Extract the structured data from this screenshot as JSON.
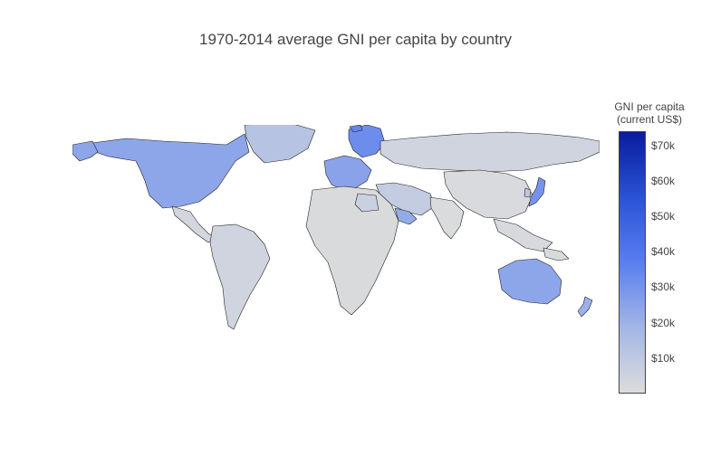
{
  "title": "1970-2014 average GNI per capita by country",
  "colorbar": {
    "title_line1": "GNI per capita",
    "title_line2": "(current US$)",
    "min": 0,
    "max": 74000,
    "ticks": [
      {
        "label": "$10k",
        "value": 10000
      },
      {
        "label": "$20k",
        "value": 20000
      },
      {
        "label": "$30k",
        "value": 30000
      },
      {
        "label": "$40k",
        "value": 40000
      },
      {
        "label": "$50k",
        "value": 50000
      },
      {
        "label": "$60k",
        "value": 60000
      },
      {
        "label": "$70k",
        "value": 70000
      }
    ],
    "colorscale": [
      "#dcdcdc",
      "#a2b6e6",
      "#5a7ef0",
      "#2a52d4",
      "#0a1c9e"
    ]
  },
  "map": {
    "projection": "equirectangular",
    "border_color": "#222222",
    "no_data_color": "#d9d9d9",
    "regions": [
      {
        "name": "North America",
        "value": 24000
      },
      {
        "name": "Alaska",
        "value": 24000
      },
      {
        "name": "Greenland",
        "value": 12000
      },
      {
        "name": "Central America",
        "value": 3000
      },
      {
        "name": "South America",
        "value": 4000
      },
      {
        "name": "Western Europe",
        "value": 25000
      },
      {
        "name": "Scandinavia",
        "value": 32000
      },
      {
        "name": "Iceland",
        "value": 35000
      },
      {
        "name": "Russia",
        "value": 4000
      },
      {
        "name": "Middle East",
        "value": 8000
      },
      {
        "name": "Arabian Gulf",
        "value": 22000
      },
      {
        "name": "Africa",
        "value": 800
      },
      {
        "name": "Libya",
        "value": 6000
      },
      {
        "name": "South Asia",
        "value": 700
      },
      {
        "name": "China",
        "value": 1200
      },
      {
        "name": "Southeast Asia",
        "value": 1500
      },
      {
        "name": "Japan",
        "value": 30000
      },
      {
        "name": "South Korea",
        "value": 10000
      },
      {
        "name": "Australia",
        "value": 24000
      },
      {
        "name": "New Zealand",
        "value": 20000
      },
      {
        "name": "Papua New Guinea",
        "value": 1000
      }
    ]
  }
}
